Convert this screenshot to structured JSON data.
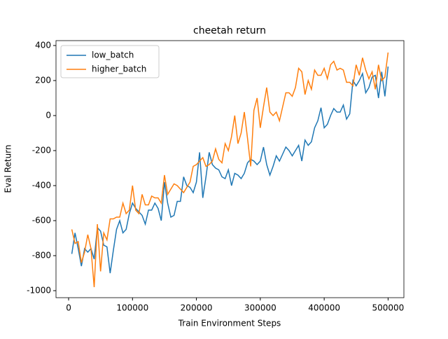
{
  "chart_data": {
    "type": "line",
    "title": "cheetah return",
    "xlabel": "Train Environment Steps",
    "ylabel": "Eval Return",
    "x": [
      5000,
      10000,
      15000,
      20000,
      25000,
      30000,
      35000,
      40000,
      45000,
      50000,
      55000,
      60000,
      65000,
      70000,
      75000,
      80000,
      85000,
      90000,
      95000,
      100000,
      105000,
      110000,
      115000,
      120000,
      125000,
      130000,
      135000,
      140000,
      145000,
      150000,
      155000,
      160000,
      165000,
      170000,
      175000,
      180000,
      185000,
      190000,
      195000,
      200000,
      205000,
      210000,
      215000,
      220000,
      225000,
      230000,
      235000,
      240000,
      245000,
      250000,
      255000,
      260000,
      265000,
      270000,
      275000,
      280000,
      285000,
      290000,
      295000,
      300000,
      305000,
      310000,
      315000,
      320000,
      325000,
      330000,
      335000,
      340000,
      345000,
      350000,
      355000,
      360000,
      365000,
      370000,
      375000,
      380000,
      385000,
      390000,
      395000,
      400000,
      405000,
      410000,
      415000,
      420000,
      425000,
      430000,
      435000,
      440000,
      445000,
      450000,
      455000,
      460000,
      465000,
      470000,
      475000,
      480000,
      485000,
      490000,
      495000,
      500000
    ],
    "series": [
      {
        "name": "low_batch",
        "color": "#1f77b4",
        "values": [
          -790,
          -670,
          -760,
          -860,
          -760,
          -780,
          -760,
          -820,
          -640,
          -660,
          -740,
          -750,
          -900,
          -770,
          -650,
          -600,
          -670,
          -650,
          -560,
          -500,
          -530,
          -550,
          -570,
          -620,
          -540,
          -540,
          -500,
          -530,
          -600,
          -380,
          -500,
          -580,
          -570,
          -490,
          -490,
          -350,
          -400,
          -410,
          -440,
          -380,
          -210,
          -470,
          -350,
          -210,
          -280,
          -300,
          -310,
          -350,
          -360,
          -310,
          -400,
          -330,
          -340,
          -360,
          -330,
          -270,
          -250,
          -260,
          -280,
          -260,
          -180,
          -280,
          -340,
          -290,
          -230,
          -260,
          -220,
          -180,
          -200,
          -230,
          -200,
          -170,
          -260,
          -140,
          -170,
          -150,
          -70,
          -30,
          45,
          -70,
          -50,
          0,
          40,
          20,
          20,
          60,
          -20,
          10,
          200,
          170,
          200,
          240,
          130,
          160,
          220,
          230,
          100,
          250,
          110,
          280
        ]
      },
      {
        "name": "higher_batch",
        "color": "#ff7f0e",
        "values": [
          -650,
          -730,
          -720,
          -840,
          -780,
          -680,
          -760,
          -980,
          -620,
          -890,
          -670,
          -710,
          -590,
          -590,
          -580,
          -580,
          -500,
          -560,
          -540,
          -400,
          -540,
          -560,
          -450,
          -510,
          -510,
          -460,
          -470,
          -470,
          -500,
          -340,
          -450,
          -420,
          -390,
          -400,
          -420,
          -440,
          -410,
          -380,
          -290,
          -280,
          -260,
          -240,
          -290,
          -280,
          -260,
          -190,
          -250,
          -270,
          -160,
          -200,
          -120,
          0,
          -160,
          -100,
          20,
          -130,
          -290,
          30,
          100,
          -70,
          50,
          160,
          20,
          0,
          20,
          -30,
          50,
          130,
          130,
          110,
          160,
          270,
          250,
          120,
          200,
          150,
          260,
          230,
          230,
          270,
          210,
          290,
          310,
          260,
          270,
          260,
          190,
          190,
          170,
          290,
          230,
          330,
          260,
          210,
          250,
          150,
          290,
          200,
          220,
          360
        ]
      }
    ],
    "xlim": [
      -19750,
      524750
    ],
    "ylim": [
      -1040,
      428
    ],
    "xticks": [
      0,
      100000,
      200000,
      300000,
      400000,
      500000
    ],
    "yticks": [
      -1000,
      -800,
      -600,
      -400,
      -200,
      0,
      200,
      400
    ],
    "legend": "upper left",
    "grid": false
  }
}
